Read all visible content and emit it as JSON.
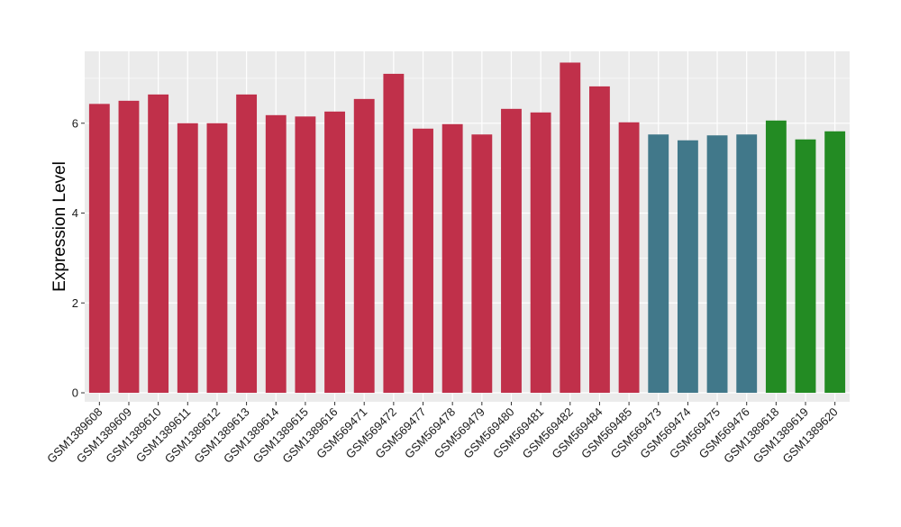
{
  "chart_data": {
    "type": "bar",
    "title": "",
    "xlabel": "",
    "ylabel": "Expression Level",
    "ylim": [
      -0.2,
      7.6
    ],
    "yticks": [
      0,
      2,
      4,
      6
    ],
    "grid": true,
    "legend": "none",
    "categories": [
      "GSM1389608",
      "GSM1389609",
      "GSM1389610",
      "GSM1389611",
      "GSM1389612",
      "GSM1389613",
      "GSM1389614",
      "GSM1389615",
      "GSM1389616",
      "GSM569471",
      "GSM569472",
      "GSM569477",
      "GSM569478",
      "GSM569479",
      "GSM569480",
      "GSM569481",
      "GSM569482",
      "GSM569484",
      "GSM569485",
      "GSM569473",
      "GSM569474",
      "GSM569475",
      "GSM569476",
      "GSM1389618",
      "GSM1389619",
      "GSM1389620"
    ],
    "values": [
      6.43,
      6.5,
      6.64,
      6.0,
      6.0,
      6.64,
      6.18,
      6.15,
      6.26,
      6.54,
      7.1,
      5.88,
      5.98,
      5.75,
      6.32,
      6.24,
      7.35,
      6.82,
      6.02,
      5.75,
      5.62,
      5.73,
      5.75,
      6.06,
      5.64,
      5.82
    ],
    "group_colors": [
      "#C0304A",
      "#C0304A",
      "#C0304A",
      "#C0304A",
      "#C0304A",
      "#C0304A",
      "#C0304A",
      "#C0304A",
      "#C0304A",
      "#C0304A",
      "#C0304A",
      "#C0304A",
      "#C0304A",
      "#C0304A",
      "#C0304A",
      "#C0304A",
      "#C0304A",
      "#C0304A",
      "#C0304A",
      "#41788A",
      "#41788A",
      "#41788A",
      "#41788A",
      "#238B23",
      "#238B23",
      "#238B23"
    ],
    "panel_background": "#EBEBEB",
    "grid_color": "#FFFFFF"
  }
}
